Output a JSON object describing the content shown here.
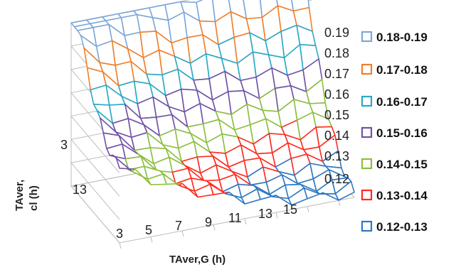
{
  "chart_data": {
    "type": "surface",
    "x_label": "TAver,G (h)",
    "y_label_line1": "TAver,",
    "y_label_line2": "cl (h)",
    "x_ticks": [
      "3",
      "5",
      "7",
      "9",
      "11",
      "13",
      "15"
    ],
    "y_ticks": [
      "3",
      "13"
    ],
    "z_ticks": [
      "0.12",
      "0.13",
      "0.14",
      "0.15",
      "0.16",
      "0.17",
      "0.18",
      "0.19"
    ],
    "z_range": [
      0.12,
      0.19
    ],
    "legend": [
      {
        "label": "0.18-0.19",
        "color": "#7da7d9"
      },
      {
        "label": "0.17-0.18",
        "color": "#f07f2a"
      },
      {
        "label": "0.16-0.17",
        "color": "#29a8c8"
      },
      {
        "label": "0.15-0.16",
        "color": "#7052a6"
      },
      {
        "label": "0.14-0.15",
        "color": "#8cbf3e"
      },
      {
        "label": "0.13-0.14",
        "color": "#ff2a1f"
      },
      {
        "label": "0.12-0.13",
        "color": "#2e78c4"
      }
    ]
  }
}
